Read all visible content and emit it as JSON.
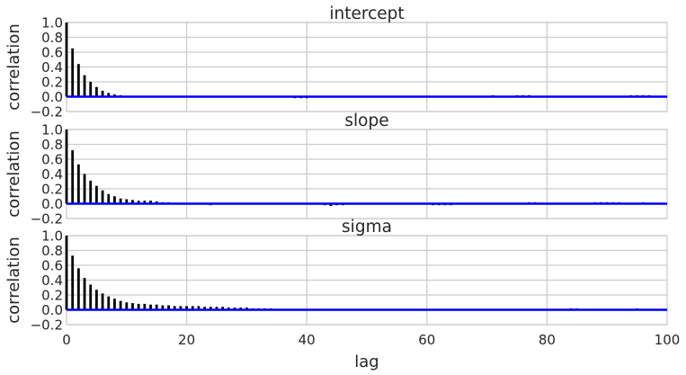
{
  "chart_data": [
    {
      "type": "bar",
      "title": "intercept",
      "xlabel": "",
      "ylabel": "correlation",
      "xlim": [
        0,
        100
      ],
      "ylim": [
        -0.2,
        1.0
      ],
      "yticks": [
        "1.0",
        "0.8",
        "0.6",
        "0.4",
        "0.2",
        "0.0",
        "−0.2"
      ],
      "xticks": [],
      "grid": true,
      "zero_line": true,
      "x": [
        0,
        1,
        2,
        3,
        4,
        5,
        6,
        7,
        8,
        9,
        10,
        11,
        12,
        13,
        14,
        15,
        16,
        17,
        18,
        19,
        20,
        21,
        22,
        23,
        24,
        25,
        26,
        27,
        28,
        29,
        30,
        31,
        32,
        33,
        34,
        35,
        36,
        37,
        38,
        39,
        40,
        41,
        42,
        43,
        44,
        45,
        46,
        47,
        48,
        49,
        50,
        51,
        52,
        53,
        54,
        55,
        56,
        57,
        58,
        59,
        60,
        61,
        62,
        63,
        64,
        65,
        66,
        67,
        68,
        69,
        70,
        71,
        72,
        73,
        74,
        75,
        76,
        77,
        78,
        79,
        80,
        81,
        82,
        83,
        84,
        85,
        86,
        87,
        88,
        89,
        90,
        91,
        92,
        93,
        94,
        95,
        96,
        97,
        98,
        99
      ],
      "values": [
        1.0,
        0.65,
        0.44,
        0.29,
        0.2,
        0.13,
        0.08,
        0.05,
        0.03,
        0.01,
        0.0,
        0.0,
        0.0,
        0.0,
        0.0,
        0.0,
        0.0,
        0.0,
        0.0,
        0.0,
        0.0,
        0.0,
        0.0,
        0.0,
        0.0,
        0.0,
        0.0,
        0.0,
        -0.01,
        -0.01,
        -0.01,
        -0.01,
        0.0,
        0.0,
        0.0,
        0.0,
        0.0,
        -0.01,
        -0.02,
        -0.02,
        -0.02,
        -0.01,
        0.0,
        0.0,
        0.0,
        0.0,
        0.0,
        0.0,
        0.0,
        0.0,
        0.0,
        0.0,
        0.0,
        0.0,
        0.0,
        0.0,
        0.0,
        0.0,
        0.0,
        0.0,
        0.0,
        0.0,
        0.0,
        0.0,
        0.0,
        0.0,
        0.0,
        0.0,
        0.0,
        0.0,
        0.0,
        0.01,
        0.0,
        0.0,
        0.0,
        0.01,
        0.01,
        0.01,
        0.0,
        0.0,
        0.0,
        0.0,
        0.0,
        0.0,
        0.0,
        0.0,
        0.0,
        -0.01,
        0.0,
        0.0,
        0.0,
        0.0,
        0.0,
        0.0,
        0.01,
        0.01,
        0.01,
        0.01,
        0.0,
        0.0
      ]
    },
    {
      "type": "bar",
      "title": "slope",
      "xlabel": "",
      "ylabel": "correlation",
      "xlim": [
        0,
        100
      ],
      "ylim": [
        -0.2,
        1.0
      ],
      "yticks": [
        "1.0",
        "0.8",
        "0.6",
        "0.4",
        "0.2",
        "0.0",
        "−0.2"
      ],
      "xticks": [],
      "grid": true,
      "zero_line": true,
      "x": [
        0,
        1,
        2,
        3,
        4,
        5,
        6,
        7,
        8,
        9,
        10,
        11,
        12,
        13,
        14,
        15,
        16,
        17,
        18,
        19,
        20,
        21,
        22,
        23,
        24,
        25,
        26,
        27,
        28,
        29,
        30,
        31,
        32,
        33,
        34,
        35,
        36,
        37,
        38,
        39,
        40,
        41,
        42,
        43,
        44,
        45,
        46,
        47,
        48,
        49,
        50,
        51,
        52,
        53,
        54,
        55,
        56,
        57,
        58,
        59,
        60,
        61,
        62,
        63,
        64,
        65,
        66,
        67,
        68,
        69,
        70,
        71,
        72,
        73,
        74,
        75,
        76,
        77,
        78,
        79,
        80,
        81,
        82,
        83,
        84,
        85,
        86,
        87,
        88,
        89,
        90,
        91,
        92,
        93,
        94,
        95,
        96,
        97,
        98,
        99
      ],
      "values": [
        1.0,
        0.72,
        0.53,
        0.4,
        0.31,
        0.24,
        0.18,
        0.13,
        0.1,
        0.07,
        0.06,
        0.05,
        0.04,
        0.04,
        0.04,
        0.03,
        0.02,
        0.01,
        0.0,
        0.0,
        0.0,
        0.0,
        -0.01,
        -0.01,
        -0.02,
        -0.01,
        -0.01,
        -0.01,
        -0.01,
        -0.01,
        -0.01,
        -0.01,
        -0.01,
        0.0,
        0.0,
        0.0,
        0.0,
        0.0,
        0.0,
        0.0,
        0.0,
        0.0,
        -0.01,
        -0.02,
        -0.03,
        -0.02,
        -0.02,
        -0.01,
        -0.01,
        -0.01,
        -0.01,
        -0.01,
        -0.01,
        -0.01,
        -0.01,
        -0.01,
        -0.01,
        -0.01,
        -0.01,
        -0.01,
        -0.01,
        -0.02,
        -0.02,
        -0.02,
        -0.02,
        -0.01,
        -0.01,
        0.0,
        0.0,
        0.0,
        0.0,
        0.0,
        0.0,
        0.0,
        0.0,
        0.0,
        0.0,
        0.01,
        0.01,
        0.0,
        0.0,
        0.0,
        0.0,
        0.0,
        0.0,
        0.0,
        0.0,
        0.0,
        0.01,
        0.02,
        0.02,
        0.01,
        0.01,
        0.0,
        0.0,
        0.0,
        0.01,
        0.0,
        0.0,
        0.0
      ]
    },
    {
      "type": "bar",
      "title": "sigma",
      "xlabel": "lag",
      "ylabel": "correlation",
      "xlim": [
        0,
        100
      ],
      "ylim": [
        -0.2,
        1.0
      ],
      "yticks": [
        "1.0",
        "0.8",
        "0.6",
        "0.4",
        "0.2",
        "0.0",
        "−0.2"
      ],
      "xticks": [
        "0",
        "20",
        "40",
        "60",
        "80",
        "100"
      ],
      "grid": true,
      "zero_line": true,
      "x": [
        0,
        1,
        2,
        3,
        4,
        5,
        6,
        7,
        8,
        9,
        10,
        11,
        12,
        13,
        14,
        15,
        16,
        17,
        18,
        19,
        20,
        21,
        22,
        23,
        24,
        25,
        26,
        27,
        28,
        29,
        30,
        31,
        32,
        33,
        34,
        35,
        36,
        37,
        38,
        39,
        40,
        41,
        42,
        43,
        44,
        45,
        46,
        47,
        48,
        49,
        50,
        51,
        52,
        53,
        54,
        55,
        56,
        57,
        58,
        59,
        60,
        61,
        62,
        63,
        64,
        65,
        66,
        67,
        68,
        69,
        70,
        71,
        72,
        73,
        74,
        75,
        76,
        77,
        78,
        79,
        80,
        81,
        82,
        83,
        84,
        85,
        86,
        87,
        88,
        89,
        90,
        91,
        92,
        93,
        94,
        95,
        96,
        97,
        98,
        99
      ],
      "values": [
        1.0,
        0.73,
        0.56,
        0.43,
        0.34,
        0.27,
        0.22,
        0.18,
        0.15,
        0.12,
        0.1,
        0.09,
        0.08,
        0.08,
        0.07,
        0.07,
        0.06,
        0.06,
        0.05,
        0.05,
        0.05,
        0.05,
        0.05,
        0.04,
        0.04,
        0.04,
        0.04,
        0.03,
        0.03,
        0.03,
        0.03,
        0.02,
        0.02,
        0.01,
        0.01,
        0.0,
        0.0,
        0.0,
        0.0,
        0.0,
        0.0,
        0.0,
        0.0,
        0.0,
        0.0,
        0.0,
        0.0,
        0.0,
        0.0,
        -0.01,
        -0.01,
        -0.01,
        -0.01,
        0.0,
        0.0,
        0.0,
        0.0,
        0.0,
        0.0,
        -0.01,
        -0.01,
        -0.01,
        -0.01,
        -0.01,
        -0.01,
        -0.01,
        -0.01,
        -0.01,
        -0.01,
        -0.01,
        0.0,
        0.0,
        0.0,
        0.0,
        0.0,
        0.0,
        0.0,
        0.0,
        0.0,
        0.0,
        0.0,
        0.0,
        0.0,
        0.0,
        0.01,
        0.01,
        0.0,
        0.0,
        0.0,
        0.0,
        0.0,
        0.0,
        0.0,
        0.0,
        0.0,
        0.01,
        0.0,
        0.0,
        0.0,
        0.0
      ]
    }
  ],
  "colors": {
    "bar": "#000000",
    "zero_line": "#0000ff",
    "grid": "#cccccc",
    "frame": "#cccccc",
    "text": "#262626"
  }
}
